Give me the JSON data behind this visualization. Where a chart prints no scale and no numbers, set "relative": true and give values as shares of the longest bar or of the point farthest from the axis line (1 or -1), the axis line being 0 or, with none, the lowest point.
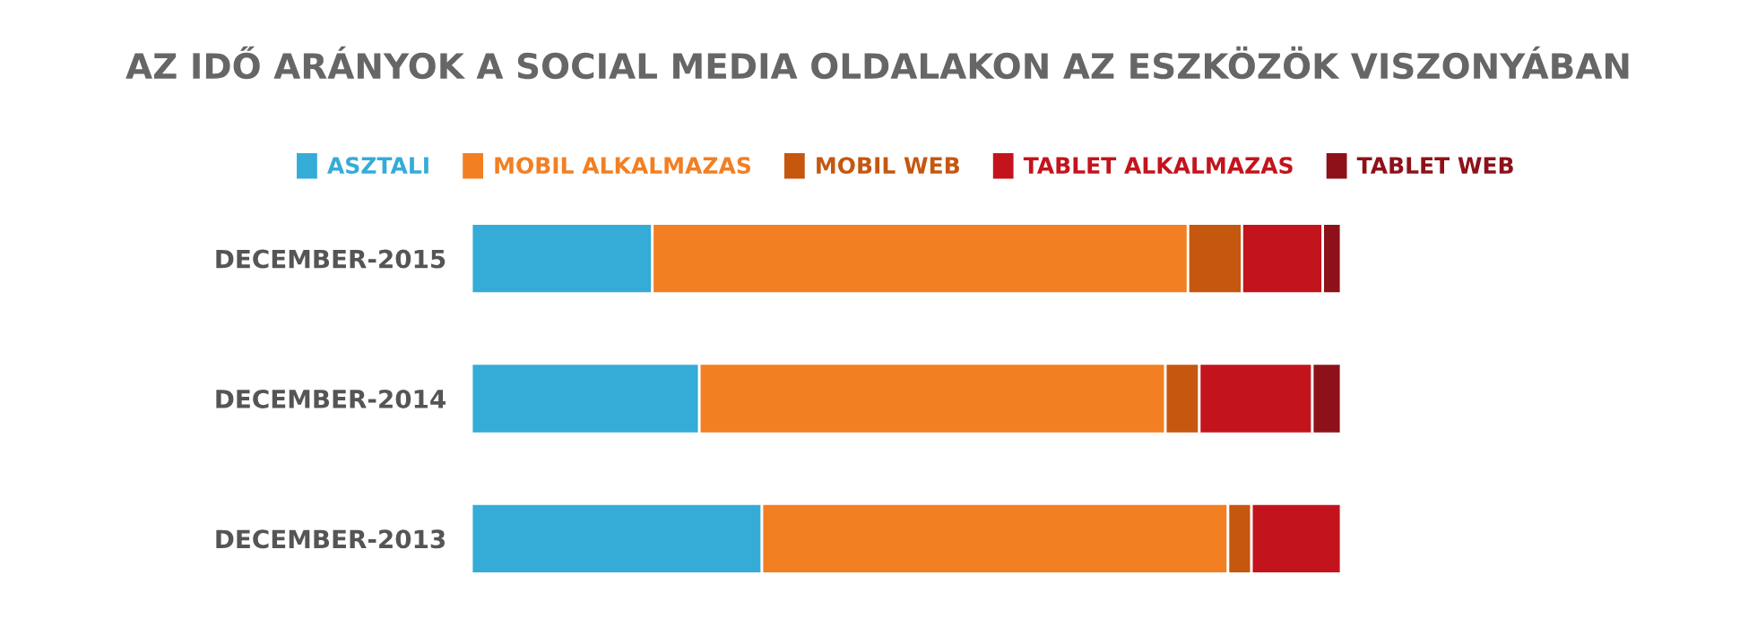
{
  "chart_data": {
    "type": "bar",
    "title": "AZ IDŐ ARÁNYOK A SOCIAL MEDIA OLDALAKON AZ ESZKÖZÖK VISZONYÁBAN",
    "orientation": "horizontal",
    "stacked": true,
    "relative": true,
    "legend": "top",
    "categories": [
      "DECEMBER-2015",
      "DECEMBER-2014",
      "DECEMBER-2013"
    ],
    "series": [
      {
        "name": "ASZTALI",
        "color": "#35acd7",
        "values": [
          0.208,
          0.262,
          0.334
        ]
      },
      {
        "name": "MOBIL ALKALMAZAS",
        "color": "#f27f22",
        "values": [
          0.616,
          0.536,
          0.536
        ]
      },
      {
        "name": "MOBIL WEB",
        "color": "#c5570f",
        "values": [
          0.062,
          0.039,
          0.027
        ]
      },
      {
        "name": "TABLET ALKALMAZAS",
        "color": "#c3141d",
        "values": [
          0.093,
          0.13,
          0.103
        ]
      },
      {
        "name": "TABLET WEB",
        "color": "#8e1119",
        "values": [
          0.021,
          0.033,
          null
        ]
      }
    ]
  }
}
